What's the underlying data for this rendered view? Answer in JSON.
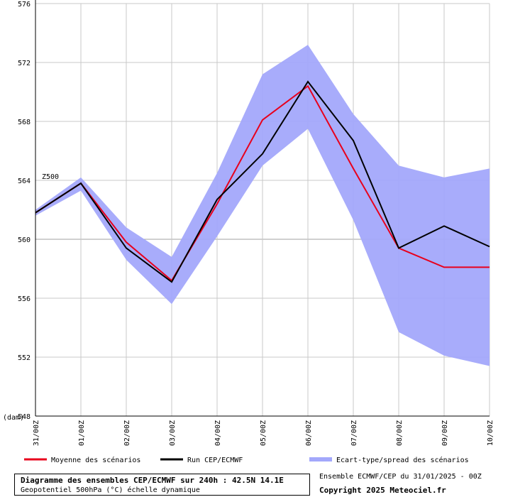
{
  "chart_data": {
    "type": "line",
    "unit_label": "(dam)",
    "level_label": "Z500",
    "categories": [
      "31/00Z",
      "01/00Z",
      "02/00Z",
      "03/00Z",
      "04/00Z",
      "05/00Z",
      "06/00Z",
      "07/00Z",
      "08/00Z",
      "09/00Z",
      "10/00Z"
    ],
    "ylim": [
      548,
      576
    ],
    "yticks": [
      548,
      552,
      556,
      560,
      564,
      568,
      572,
      576
    ],
    "grid": true,
    "series": [
      {
        "name": "Moyenne des scénarios",
        "color": "#e8001c",
        "values": [
          561.8,
          563.8,
          559.8,
          557.2,
          562.4,
          568.1,
          570.4,
          564.8,
          559.4,
          558.1,
          558.1
        ]
      },
      {
        "name": "Run CEP/ECMWF",
        "color": "#000000",
        "values": [
          561.8,
          563.8,
          559.4,
          557.1,
          562.7,
          565.8,
          570.7,
          566.7,
          559.4,
          560.9,
          559.5
        ]
      }
    ],
    "band": {
      "name": "Ecart-type/spread des scénarios",
      "color": "#a3a8fb",
      "upper": [
        562.0,
        564.2,
        560.8,
        558.8,
        564.5,
        571.2,
        573.2,
        568.5,
        565.0,
        564.2,
        564.8
      ],
      "lower": [
        561.6,
        563.3,
        558.6,
        555.6,
        560.2,
        565.0,
        567.5,
        561.3,
        553.7,
        552.1,
        551.4
      ]
    }
  },
  "legend": {
    "mean": "Moyenne des scénarios",
    "run": "Run CEP/ECMWF",
    "spread": "Ecart-type/spread des scénarios"
  },
  "footer": {
    "title": "Diagramme des ensembles CEP/ECMWF sur 240h : 42.5N 14.1E",
    "subtitle": "Geopotentiel 500hPa (°C) échelle dynamique",
    "ensemble_info": "Ensemble ECMWF/CEP du 31/01/2025 - 00Z",
    "copyright": "Copyright 2025 Meteociel.fr"
  }
}
